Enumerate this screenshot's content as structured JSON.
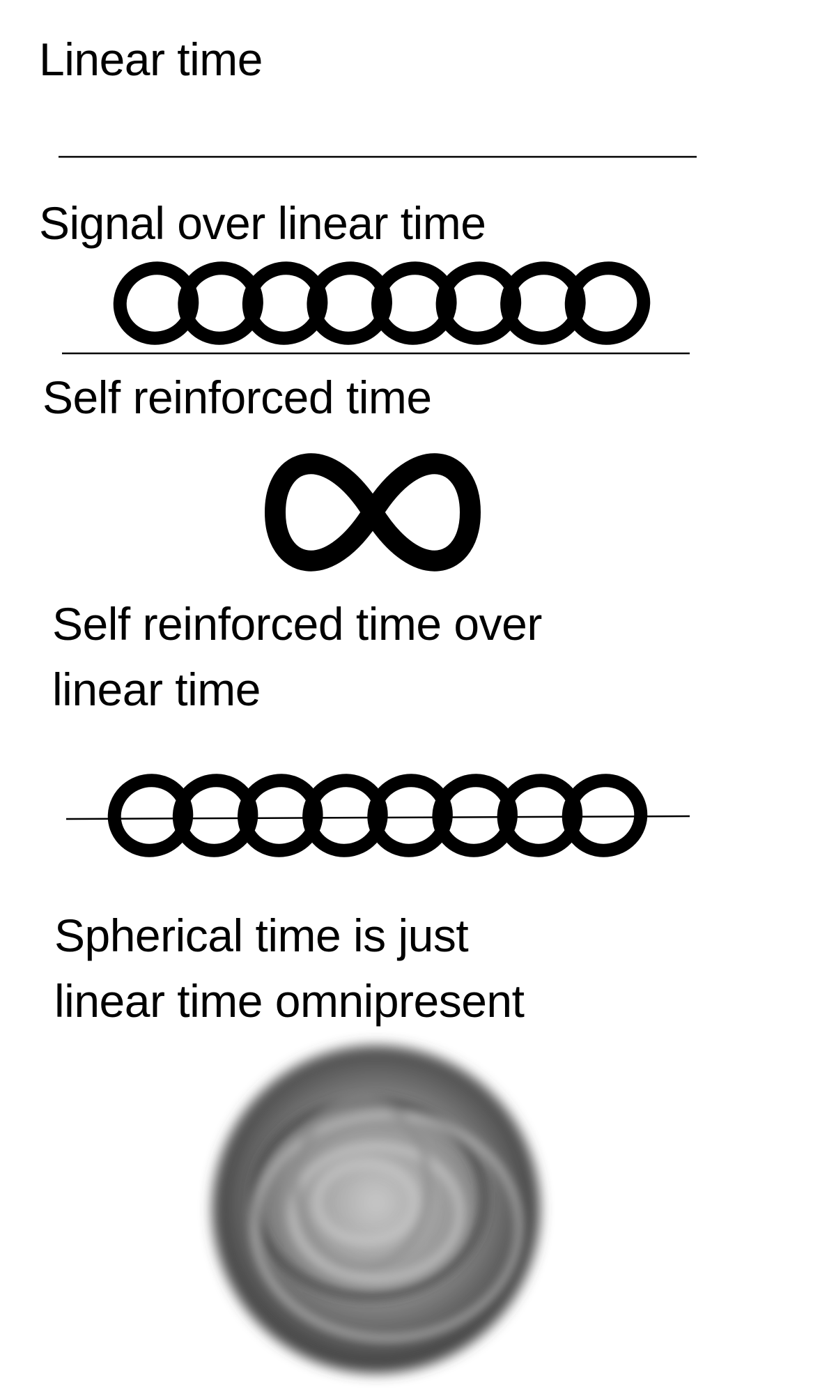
{
  "sections": {
    "linear": {
      "label": "Linear time"
    },
    "signal": {
      "label": "Signal over linear time",
      "loop_count": 8
    },
    "self_reinforced": {
      "label": "Self reinforced time"
    },
    "self_over_linear": {
      "label_lines": [
        "Self reinforced time over",
        "linear time"
      ],
      "loop_count": 8
    },
    "spherical": {
      "label_lines": [
        "Spherical time is just",
        "linear time omnipresent"
      ]
    }
  },
  "colors": {
    "ink": "#000000",
    "background": "#ffffff",
    "sphere_light": "#c8c8c8",
    "sphere_mid": "#8c8c8c",
    "sphere_dark": "#3c3c3c"
  }
}
